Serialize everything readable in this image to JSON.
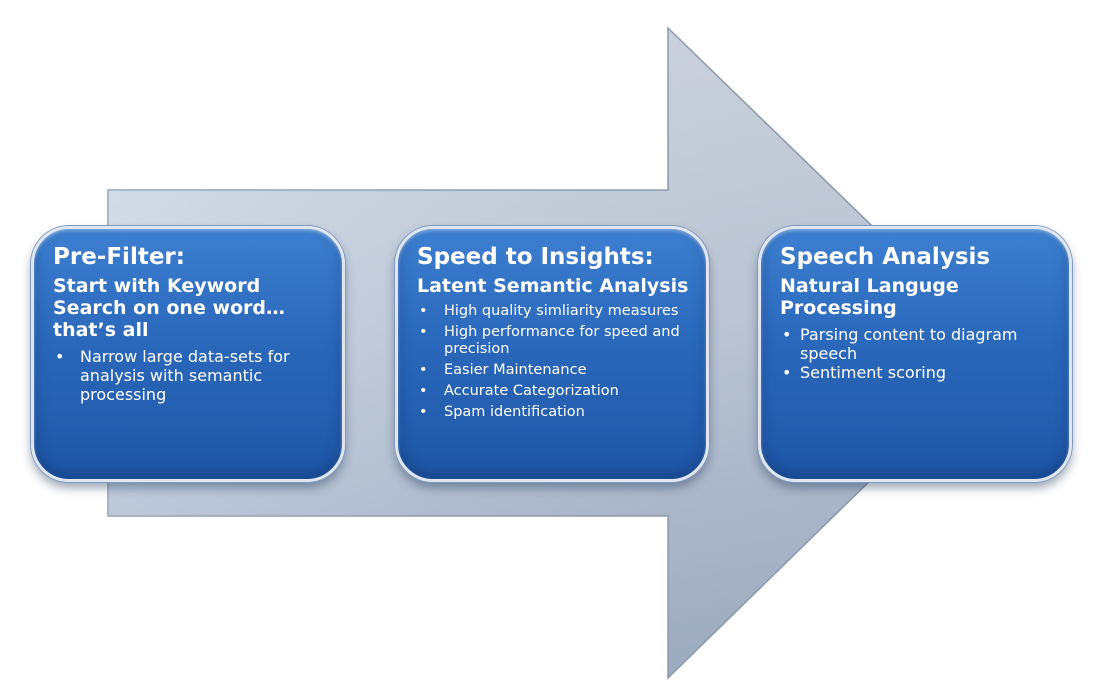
{
  "colors": {
    "arrow_light": "#c6d1e2",
    "arrow_dark": "#98a9c3",
    "box_top": "#3d7fd0",
    "box_bottom": "#1f56a6",
    "box_border": "#dfe6f0",
    "text": "#ffffff"
  },
  "stages": [
    {
      "title": "Pre-Filter:",
      "subtitle": "Start with Keyword Search on one word…that’s all",
      "bullets": [
        "Narrow large data-sets for analysis with semantic processing"
      ]
    },
    {
      "title": "Speed to Insights:",
      "subtitle": "Latent Semantic Analysis",
      "bullets": [
        "High quality simliarity measures",
        "High performance for speed and precision",
        "Easier Maintenance",
        "Accurate Categorization",
        "Spam identification"
      ]
    },
    {
      "title": "Speech Analysis",
      "subtitle": "Natural Languge Processing",
      "bullets": [
        "Parsing content to diagram speech",
        "Sentiment scoring"
      ]
    }
  ]
}
